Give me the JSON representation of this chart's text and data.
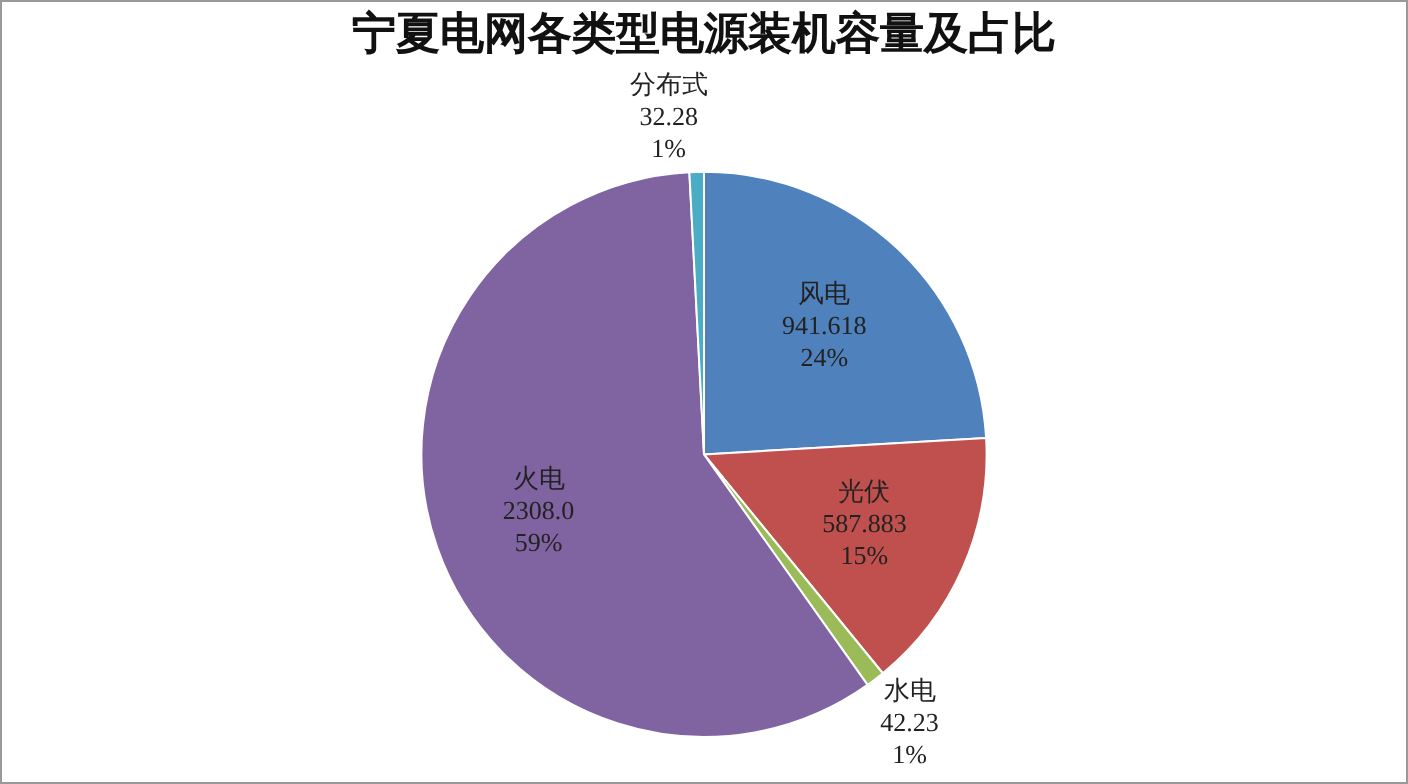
{
  "chart_data": {
    "type": "pie",
    "title": "宁夏电网各类型电源装机容量及占比",
    "categories": [
      "风电",
      "光伏",
      "水电",
      "火电",
      "分布式"
    ],
    "values": [
      941.618,
      587.883,
      42.23,
      2308.0,
      32.28
    ],
    "colors": [
      "#4f81bd",
      "#c0504d",
      "#9bbb59",
      "#8064a2",
      "#4bacc6"
    ],
    "value_labels": [
      "941.618\n24%",
      "587.883\n15%",
      "42.23\n1%",
      "2308.0\n59%",
      "32.28\n1%"
    ],
    "legend": false
  }
}
